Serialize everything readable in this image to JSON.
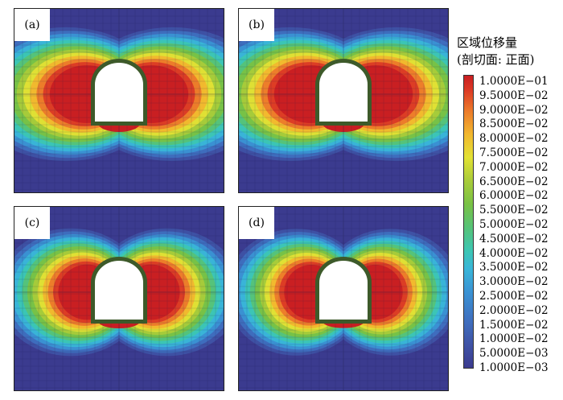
{
  "chart_data": {
    "type": "heatmap",
    "panels": [
      {
        "label": "(a)",
        "variant": 1.0
      },
      {
        "label": "(b)",
        "variant": 1.0
      },
      {
        "label": "(c)",
        "variant": 0.78
      },
      {
        "label": "(d)",
        "variant": 0.74
      }
    ],
    "legend": {
      "title_line1": "区域位移量",
      "title_line2": "(剖切面: 正面)",
      "ticks": [
        "1.0000E−01",
        "9.5000E−02",
        "9.0000E−02",
        "8.5000E−02",
        "8.0000E−02",
        "7.5000E−02",
        "7.0000E−02",
        "6.5000E−02",
        "6.0000E−02",
        "5.5000E−02",
        "5.0000E−02",
        "4.5000E−02",
        "4.0000E−02",
        "3.5000E−02",
        "3.0000E−02",
        "2.5000E−02",
        "2.0000E−02",
        "1.5000E−02",
        "1.0000E−02",
        "5.0000E−03",
        "1.0000E−03"
      ],
      "range": [
        0.001,
        0.1
      ]
    },
    "colors": {
      "low": "#3b3b8f",
      "mid": "#56c378",
      "high": "#c81e22",
      "lining": "#3d5a2a",
      "mesh": "#1a1a4a"
    }
  }
}
